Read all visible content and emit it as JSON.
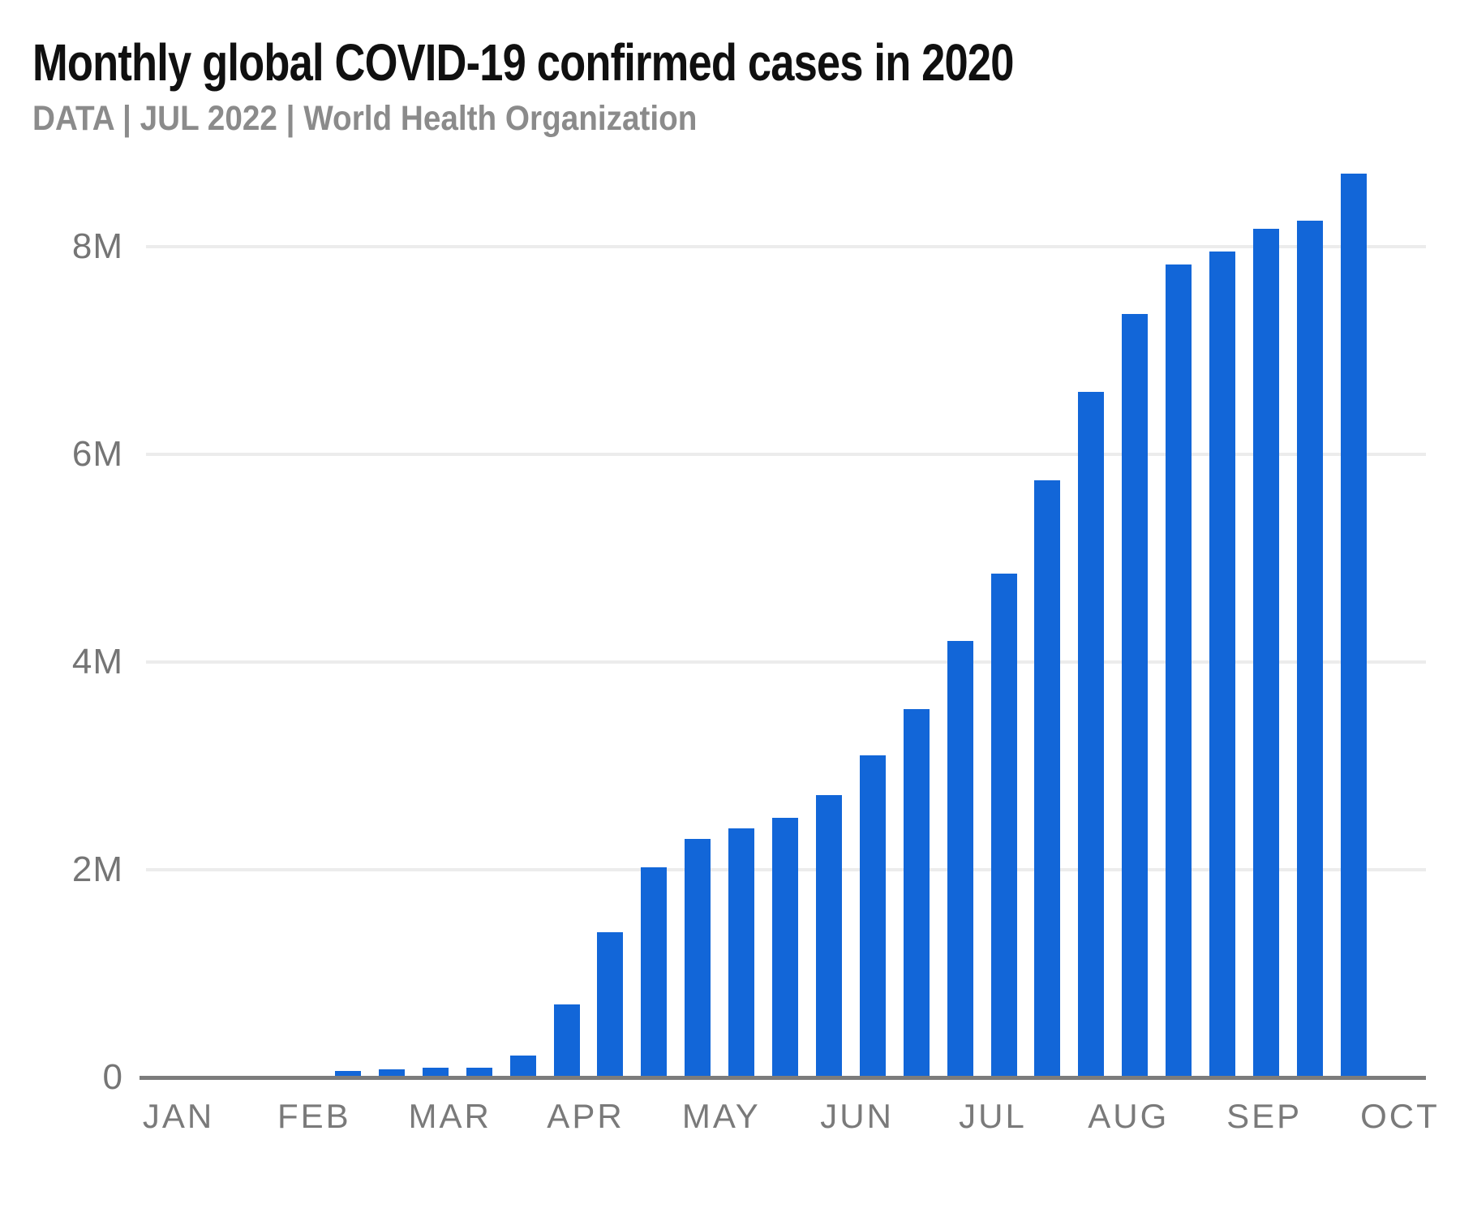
{
  "header": {
    "title": "Monthly global COVID-19 confirmed cases in 2020",
    "subtitle": "DATA | JUL 2022 | World Health Organization"
  },
  "colors": {
    "bar": "#1266d8",
    "title_text": "#101010",
    "subtitle_text": "#8b8b8b",
    "axis_tick_text": "#757575",
    "gridline": "#ececec",
    "axis_baseline": "#7c7c7c",
    "background": "#ffffff"
  },
  "chart_data": {
    "type": "bar",
    "title": "Monthly global COVID-19 confirmed cases in 2020",
    "subtitle": "DATA | JUL 2022 | World Health Organization",
    "x_tick_labels": [
      "JAN",
      "FEB",
      "MAR",
      "APR",
      "MAY",
      "JUN",
      "JUL",
      "AUG",
      "SEP",
      "OCT"
    ],
    "y_tick_labels": [
      "0",
      "2M",
      "4M",
      "6M",
      "8M"
    ],
    "y_tick_values": [
      0,
      2000000,
      4000000,
      6000000,
      8000000
    ],
    "ylim": [
      0,
      8900000
    ],
    "grid": "horizontal",
    "legend": "none",
    "bar_color": "#1266d8",
    "values": [
      60000,
      80000,
      90000,
      90000,
      210000,
      700000,
      1400000,
      2020000,
      2300000,
      2400000,
      2500000,
      2720000,
      3100000,
      3550000,
      4200000,
      4850000,
      5750000,
      6600000,
      7350000,
      7830000,
      7950000,
      8170000,
      8250000,
      8700000
    ]
  }
}
